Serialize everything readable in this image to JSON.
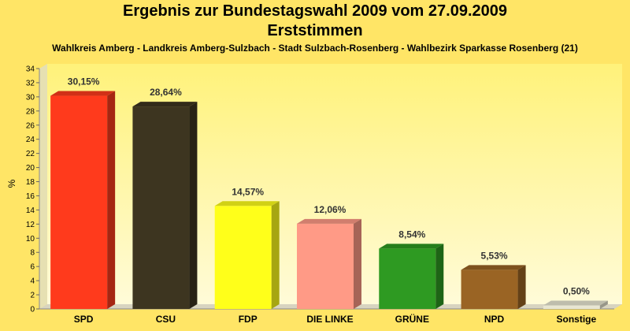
{
  "chart_data": {
    "type": "bar",
    "title": "Ergebnis zur Bundestagswahl 2009 vom 27.09.2009",
    "subtitle": "Erststimmen",
    "caption": "Wahlkreis Amberg - Landkreis Amberg-Sulzbach - Stadt Sulzbach-Rosenberg - Wahlbezirk Sparkasse Rosenberg (21)",
    "ylabel": "%",
    "ylim": [
      0,
      34
    ],
    "yticks": [
      0,
      2,
      4,
      6,
      8,
      10,
      12,
      14,
      16,
      18,
      20,
      22,
      24,
      26,
      28,
      30,
      32,
      34
    ],
    "grid": false,
    "categories": [
      "SPD",
      "CSU",
      "FDP",
      "DIE LINKE",
      "GRÜNE",
      "NPD",
      "Sonstige"
    ],
    "values": [
      30.15,
      28.64,
      14.57,
      12.06,
      8.54,
      5.53,
      0.5
    ],
    "value_labels": [
      "30,15%",
      "28,64%",
      "14,57%",
      "12,06%",
      "8,54%",
      "5,53%",
      "0,50%"
    ],
    "colors": [
      "#ff3a1c",
      "#3d3520",
      "#ffff1a",
      "#ff9a86",
      "#2e9a22",
      "#9a6424",
      "#e8e6d2"
    ]
  }
}
